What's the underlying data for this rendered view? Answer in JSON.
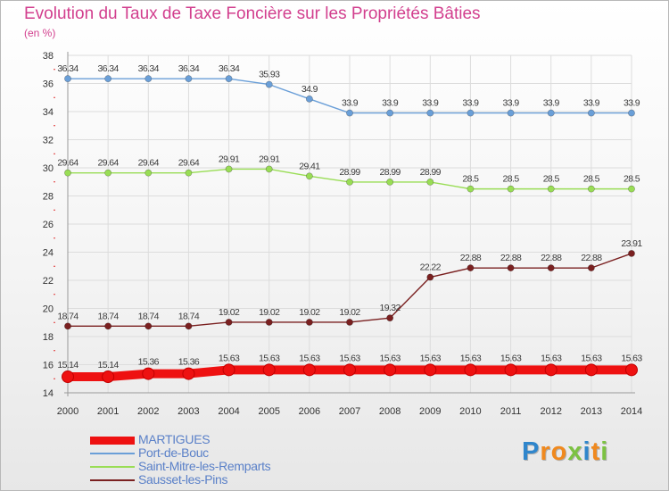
{
  "chart_data": {
    "type": "line",
    "title": "Evolution du Taux de Taxe Foncière sur les Propriétés Bâties",
    "subtitle": "(en %)",
    "xlabel": "",
    "ylabel": "",
    "categories": [
      "2000",
      "2001",
      "2002",
      "2003",
      "2004",
      "2005",
      "2006",
      "2007",
      "2008",
      "2009",
      "2010",
      "2011",
      "2012",
      "2013",
      "2014"
    ],
    "ylim": [
      14,
      38
    ],
    "yticks": [
      14,
      16,
      18,
      20,
      22,
      24,
      26,
      28,
      30,
      32,
      34,
      36,
      38
    ],
    "grid": true,
    "legend_position": "bottom-left",
    "series": [
      {
        "name": "MARTIGUES",
        "color": "#ee1111",
        "values": [
          15.14,
          15.14,
          15.36,
          15.36,
          15.63,
          15.63,
          15.63,
          15.63,
          15.63,
          15.63,
          15.63,
          15.63,
          15.63,
          15.63,
          15.63
        ],
        "labels": [
          "15.14",
          "15.14",
          "15.36",
          "15.36",
          "15.63",
          "15.63",
          "15.63",
          "15.63",
          "15.63",
          "15.63",
          "15.63",
          "15.63",
          "15.63",
          "15.63",
          "15.63"
        ]
      },
      {
        "name": "Port-de-Bouc",
        "color": "#6a9fd8",
        "values": [
          36.34,
          36.34,
          36.34,
          36.34,
          36.34,
          35.93,
          34.9,
          33.9,
          33.9,
          33.9,
          33.9,
          33.9,
          33.9,
          33.9,
          33.9
        ],
        "labels": [
          "36.34",
          "36.34",
          "36.34",
          "36.34",
          "36.34",
          "35.93",
          "34.9",
          "33.9",
          "33.9",
          "33.9",
          "33.9",
          "33.9",
          "33.9",
          "33.9",
          "33.9"
        ]
      },
      {
        "name": "Saint-Mitre-les-Remparts",
        "color": "#99dd55",
        "values": [
          29.64,
          29.64,
          29.64,
          29.64,
          29.91,
          29.91,
          29.41,
          28.99,
          28.99,
          28.99,
          28.5,
          28.5,
          28.5,
          28.5,
          28.5
        ],
        "labels": [
          "29.64",
          "29.64",
          "29.64",
          "29.64",
          "29.91",
          "29.91",
          "29.41",
          "28.99",
          "28.99",
          "28.99",
          "28.5",
          "28.5",
          "28.5",
          "28.5",
          "28.5"
        ]
      },
      {
        "name": "Sausset-les-Pins",
        "color": "#7a2020",
        "values": [
          18.74,
          18.74,
          18.74,
          18.74,
          19.02,
          19.02,
          19.02,
          19.02,
          19.32,
          22.22,
          22.88,
          22.88,
          22.88,
          22.88,
          23.91
        ],
        "labels": [
          "18.74",
          "18.74",
          "18.74",
          "18.74",
          "19.02",
          "19.02",
          "19.02",
          "19.02",
          "19.32",
          "22.22",
          "22.88",
          "22.88",
          "22.88",
          "22.88",
          "23.91"
        ]
      }
    ]
  },
  "logo": {
    "text": "Proxiti",
    "colors": [
      "#2f86cc",
      "#f0891e",
      "#f0891e",
      "#7cc242",
      "#2f86cc",
      "#f0891e",
      "#7cc242"
    ]
  }
}
